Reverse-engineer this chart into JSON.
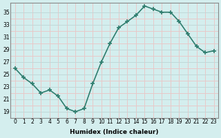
{
  "x": [
    0,
    1,
    2,
    3,
    4,
    5,
    6,
    7,
    8,
    9,
    10,
    11,
    12,
    13,
    14,
    15,
    16,
    17,
    18,
    19,
    20,
    21,
    22,
    23
  ],
  "y": [
    26,
    24.5,
    23.5,
    22,
    22.5,
    21.5,
    19.5,
    19,
    19.5,
    23.5,
    27,
    30,
    32.5,
    33.5,
    34.5,
    36,
    35.5,
    35,
    35,
    33.5,
    31.5,
    29.5,
    28.5,
    28.8
  ],
  "xlabel": "Humidex (Indice chaleur)",
  "ylim": [
    18,
    36.5
  ],
  "xlim": [
    -0.5,
    23.5
  ],
  "yticks": [
    19,
    21,
    23,
    25,
    27,
    29,
    31,
    33,
    35
  ],
  "yticks_minor": [
    20,
    22,
    24,
    26,
    28,
    30,
    32,
    34
  ],
  "xtick_labels": [
    "0",
    "1",
    "2",
    "3",
    "4",
    "5",
    "6",
    "7",
    "8",
    "9",
    "10",
    "11",
    "12",
    "13",
    "14",
    "15",
    "16",
    "17",
    "18",
    "19",
    "20",
    "21",
    "22",
    "23"
  ],
  "line_color": "#2e7d6e",
  "bg_color": "#d4eeee",
  "grid_major_color": "#c0d8d8",
  "grid_minor_color": "#e8c8c8"
}
